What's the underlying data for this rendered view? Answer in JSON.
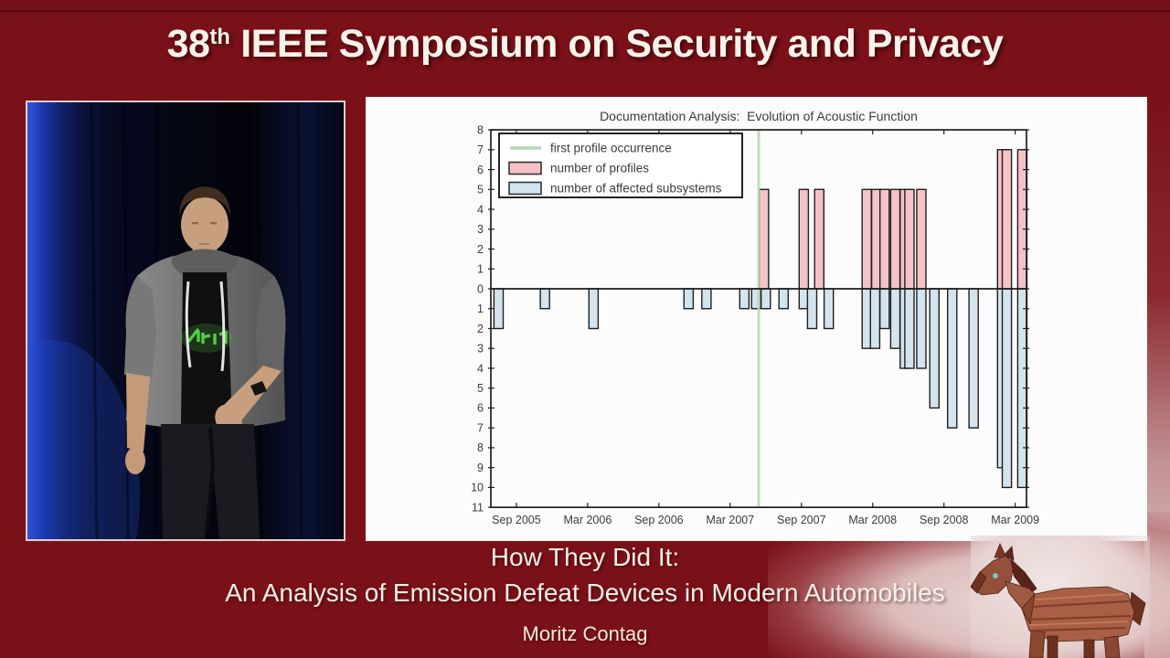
{
  "header": {
    "number": "38",
    "ordinal": "th",
    "title": "IEEE Symposium on Security and Privacy"
  },
  "footer": {
    "line1": "How They Did It:",
    "line2": "An Analysis of Emission Defeat Devices in Modern Automobiles",
    "speaker": "Moritz Contag"
  },
  "colors": {
    "background_maroon": "#7b1118",
    "slide_white": "#fcfcfc",
    "profiles_pink": "#f5c2c6",
    "subsystems_blue": "#d3e4ee",
    "first_occurrence_green": "#b7d8b4",
    "bar_edge": "#1f1f1f",
    "axis_text": "#3b3b3b",
    "banner_text": "#f8f3ea"
  },
  "chart_data": {
    "type": "bar",
    "title": "Documentation Analysis:  Evolution of Acoustic Function",
    "legend": [
      {
        "label": "first profile occurrence",
        "type": "line",
        "color": "#b7d8b4"
      },
      {
        "label": "number of profiles",
        "type": "bar",
        "color": "#f5c2c6"
      },
      {
        "label": "number of affected subsystems",
        "type": "bar",
        "color": "#d3e4ee"
      }
    ],
    "x_axis": {
      "tick_labels": [
        "Sep 2005",
        "Mar 2006",
        "Sep 2006",
        "Mar 2007",
        "Sep 2007",
        "Mar 2008",
        "Sep 2008",
        "Mar 2009"
      ],
      "tick_t": [
        8,
        14,
        20,
        26,
        32,
        38,
        44,
        50
      ],
      "domain_t": [
        5.85,
        50.95
      ],
      "t_unit": "months since Jan 2005"
    },
    "y_axis": {
      "min": -11,
      "max": 8,
      "tick_step": 1,
      "labels_absolute": true,
      "tick_labels_top_to_bottom": [
        "8",
        "7",
        "6",
        "5",
        "4",
        "3",
        "2",
        "1",
        "0",
        "1",
        "2",
        "3",
        "4",
        "5",
        "6",
        "7",
        "8",
        "9",
        "10",
        "11"
      ]
    },
    "grid": false,
    "legend_position": "upper-left",
    "first_profile_occurrence_t": 28.4,
    "bar_width_t": 0.78,
    "series": [
      {
        "name": "number of profiles",
        "color": "#f5c2c6",
        "direction": "up",
        "bars": [
          [
            28.85,
            5
          ],
          [
            32.2,
            5
          ],
          [
            33.5,
            5
          ],
          [
            37.5,
            5
          ],
          [
            38.3,
            5
          ],
          [
            39.0,
            5
          ],
          [
            39.9,
            5
          ],
          [
            40.7,
            5
          ],
          [
            41.1,
            5
          ],
          [
            42.1,
            5
          ],
          [
            48.9,
            7
          ],
          [
            49.3,
            7
          ],
          [
            50.6,
            7
          ]
        ]
      },
      {
        "name": "number of affected subsystems",
        "color": "#d3e4ee",
        "direction": "down",
        "bars": [
          [
            6.5,
            -2
          ],
          [
            10.4,
            -1
          ],
          [
            14.5,
            -2
          ],
          [
            22.5,
            -1
          ],
          [
            24.0,
            -1
          ],
          [
            27.2,
            -1
          ],
          [
            28.2,
            -1
          ],
          [
            29.0,
            -1
          ],
          [
            30.5,
            -1
          ],
          [
            32.2,
            -1
          ],
          [
            32.9,
            -2
          ],
          [
            34.3,
            -2
          ],
          [
            37.5,
            -3
          ],
          [
            38.2,
            -3
          ],
          [
            39.0,
            -2
          ],
          [
            39.9,
            -3
          ],
          [
            40.7,
            -4
          ],
          [
            41.1,
            -4
          ],
          [
            42.1,
            -4
          ],
          [
            43.2,
            -6
          ],
          [
            44.7,
            -7
          ],
          [
            46.5,
            -7
          ],
          [
            48.9,
            -9
          ],
          [
            49.3,
            -10
          ],
          [
            50.6,
            -10
          ]
        ]
      }
    ]
  }
}
